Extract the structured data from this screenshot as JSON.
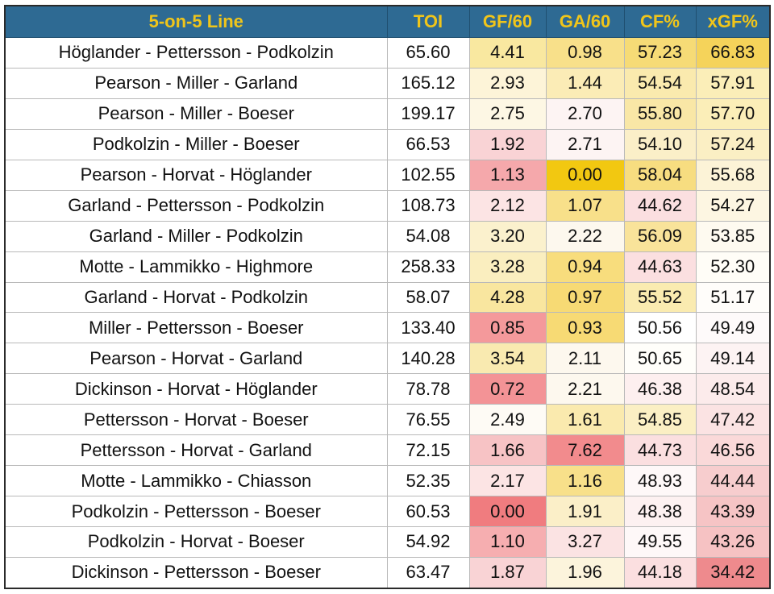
{
  "chart_data": {
    "type": "table",
    "columns": [
      "5-on-5 Line",
      "TOI",
      "GF/60",
      "GA/60",
      "CF%",
      "xGF%"
    ],
    "rows": [
      {
        "line": "Höglander - Pettersson - Podkolzin",
        "toi": "65.60",
        "gf60": "4.41",
        "ga60": "0.98",
        "cf": "57.23",
        "xgf": "66.83"
      },
      {
        "line": "Pearson - Miller - Garland",
        "toi": "165.12",
        "gf60": "2.93",
        "ga60": "1.44",
        "cf": "54.54",
        "xgf": "57.91"
      },
      {
        "line": "Pearson - Miller - Boeser",
        "toi": "199.17",
        "gf60": "2.75",
        "ga60": "2.70",
        "cf": "55.80",
        "xgf": "57.70"
      },
      {
        "line": "Podkolzin - Miller - Boeser",
        "toi": "66.53",
        "gf60": "1.92",
        "ga60": "2.71",
        "cf": "54.10",
        "xgf": "57.24"
      },
      {
        "line": "Pearson - Horvat - Höglander",
        "toi": "102.55",
        "gf60": "1.13",
        "ga60": "0.00",
        "cf": "58.04",
        "xgf": "55.68"
      },
      {
        "line": "Garland - Pettersson - Podkolzin",
        "toi": "108.73",
        "gf60": "2.12",
        "ga60": "1.07",
        "cf": "44.62",
        "xgf": "54.27"
      },
      {
        "line": "Garland - Miller - Podkolzin",
        "toi": "54.08",
        "gf60": "3.20",
        "ga60": "2.22",
        "cf": "56.09",
        "xgf": "53.85"
      },
      {
        "line": "Motte - Lammikko - Highmore",
        "toi": "258.33",
        "gf60": "3.28",
        "ga60": "0.94",
        "cf": "44.63",
        "xgf": "52.30"
      },
      {
        "line": "Garland - Horvat - Podkolzin",
        "toi": "58.07",
        "gf60": "4.28",
        "ga60": "0.97",
        "cf": "55.52",
        "xgf": "51.17"
      },
      {
        "line": "Miller - Pettersson - Boeser",
        "toi": "133.40",
        "gf60": "0.85",
        "ga60": "0.93",
        "cf": "50.56",
        "xgf": "49.49"
      },
      {
        "line": "Pearson - Horvat - Garland",
        "toi": "140.28",
        "gf60": "3.54",
        "ga60": "2.11",
        "cf": "50.65",
        "xgf": "49.14"
      },
      {
        "line": "Dickinson - Horvat - Höglander",
        "toi": "78.78",
        "gf60": "0.72",
        "ga60": "2.21",
        "cf": "46.38",
        "xgf": "48.54"
      },
      {
        "line": "Pettersson - Horvat - Boeser",
        "toi": "76.55",
        "gf60": "2.49",
        "ga60": "1.61",
        "cf": "54.85",
        "xgf": "47.42"
      },
      {
        "line": "Pettersson - Horvat - Garland",
        "toi": "72.15",
        "gf60": "1.66",
        "ga60": "7.62",
        "cf": "44.73",
        "xgf": "46.56"
      },
      {
        "line": "Motte - Lammikko - Chiasson",
        "toi": "52.35",
        "gf60": "2.17",
        "ga60": "1.16",
        "cf": "48.93",
        "xgf": "44.44"
      },
      {
        "line": "Podkolzin - Pettersson - Boeser",
        "toi": "60.53",
        "gf60": "0.00",
        "ga60": "1.91",
        "cf": "48.38",
        "xgf": "43.39"
      },
      {
        "line": "Podkolzin - Horvat - Boeser",
        "toi": "54.92",
        "gf60": "1.10",
        "ga60": "3.27",
        "cf": "49.55",
        "xgf": "43.26"
      },
      {
        "line": "Dickinson - Pettersson - Boeser",
        "toi": "63.47",
        "gf60": "1.87",
        "ga60": "1.96",
        "cf": "44.18",
        "xgf": "34.42"
      }
    ],
    "cell_fills": [
      [
        "#ffffff",
        "#f9e8a0",
        "#f8e08a",
        "#f6db76",
        "#f5d35a"
      ],
      [
        "#ffffff",
        "#fdf4d8",
        "#fbecb6",
        "#faeaae",
        "#fbeeb8"
      ],
      [
        "#ffffff",
        "#fdf7e4",
        "#fdf4f3",
        "#f9e7a6",
        "#fbeeb8"
      ],
      [
        "#ffffff",
        "#f9d3d5",
        "#fdf4f3",
        "#fbefc8",
        "#fbefc4"
      ],
      [
        "#ffffff",
        "#f5a8ab",
        "#f2c811",
        "#f7dd80",
        "#fcf3d7"
      ],
      [
        "#ffffff",
        "#fce4e4",
        "#f8e08a",
        "#fbdfe0",
        "#fdf6e2"
      ],
      [
        "#ffffff",
        "#fbf1cd",
        "#fdf8ee",
        "#f9e39a",
        "#fefaf0"
      ],
      [
        "#ffffff",
        "#faeebf",
        "#f8dd7d",
        "#fbdfe0",
        "#fffdf7"
      ],
      [
        "#ffffff",
        "#f9e69f",
        "#f7da74",
        "#faebb0",
        "#fffdfa"
      ],
      [
        "#ffffff",
        "#f4999b",
        "#f7da74",
        "#ffffff",
        "#fefafa"
      ],
      [
        "#ffffff",
        "#f9eab0",
        "#fdf8ee",
        "#fffefa",
        "#fdf3f3"
      ],
      [
        "#ffffff",
        "#f39396",
        "#fdf8ee",
        "#fdefef",
        "#fcebeb"
      ],
      [
        "#ffffff",
        "#fefbf5",
        "#faeaae",
        "#fbefc4",
        "#fbe3e3"
      ],
      [
        "#ffffff",
        "#f7c3c5",
        "#f28b8d",
        "#fbdfe0",
        "#fad9d9"
      ],
      [
        "#ffffff",
        "#fce4e4",
        "#f8e08a",
        "#fef8f8",
        "#f7cdce"
      ],
      [
        "#ffffff",
        "#f07c7f",
        "#fbefc8",
        "#fdf1f1",
        "#f6c4c5"
      ],
      [
        "#ffffff",
        "#f6aeb0",
        "#fbe3e3",
        "#fef8f8",
        "#f6c2c3"
      ],
      [
        "#ffffff",
        "#f9d3d5",
        "#fcf4dc",
        "#fbdfe0",
        "#ee8a8d"
      ]
    ],
    "header_colors": {
      "background": "#2e6a93",
      "text": "#f0c51a"
    }
  }
}
